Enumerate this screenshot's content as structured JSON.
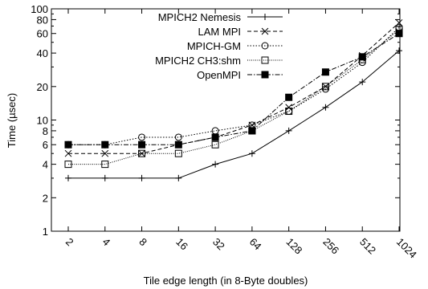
{
  "chart_data": {
    "type": "line",
    "title": "",
    "xlabel": "Tile edge length (in 8-Byte doubles)",
    "ylabel": "Time (µsec)",
    "x": [
      2,
      4,
      8,
      16,
      32,
      64,
      128,
      256,
      512,
      1024
    ],
    "xticks": [
      "2",
      "4",
      "8",
      "16",
      "32",
      "64",
      "128",
      "256",
      "512",
      "1024"
    ],
    "yscale": "log",
    "ylim": [
      1,
      100
    ],
    "yticks": [
      1,
      2,
      4,
      6,
      8,
      10,
      20,
      40,
      60,
      80,
      100
    ],
    "yticklabels": [
      "1",
      "2",
      "4",
      "6",
      "8",
      "10",
      "20",
      "40",
      "60",
      "80",
      "100"
    ],
    "grid": false,
    "legend_position": "top-left",
    "series": [
      {
        "name": "MPICH2 Nemesis",
        "marker": "plus",
        "dash": "solid",
        "values": [
          3,
          3,
          3,
          3,
          4,
          5,
          8,
          13,
          22,
          42
        ]
      },
      {
        "name": "LAM MPI",
        "marker": "cross",
        "dash": "dashed",
        "values": [
          5,
          5,
          5,
          6,
          7,
          9,
          13,
          20,
          38,
          75
        ]
      },
      {
        "name": "MPICH-GM",
        "marker": "circle-open",
        "dash": "dotted",
        "values": [
          6,
          6,
          7,
          7,
          8,
          9,
          12,
          19,
          33,
          68
        ]
      },
      {
        "name": "MPICH2 CH3:shm",
        "marker": "square-open",
        "dash": "dotted-fine",
        "values": [
          4,
          4,
          5,
          5,
          6,
          8,
          12,
          20,
          35,
          65
        ]
      },
      {
        "name": "OpenMPI",
        "marker": "square-filled",
        "dash": "dash-dot",
        "values": [
          6,
          6,
          6,
          6,
          7,
          8,
          16,
          27,
          37,
          60
        ]
      }
    ]
  }
}
